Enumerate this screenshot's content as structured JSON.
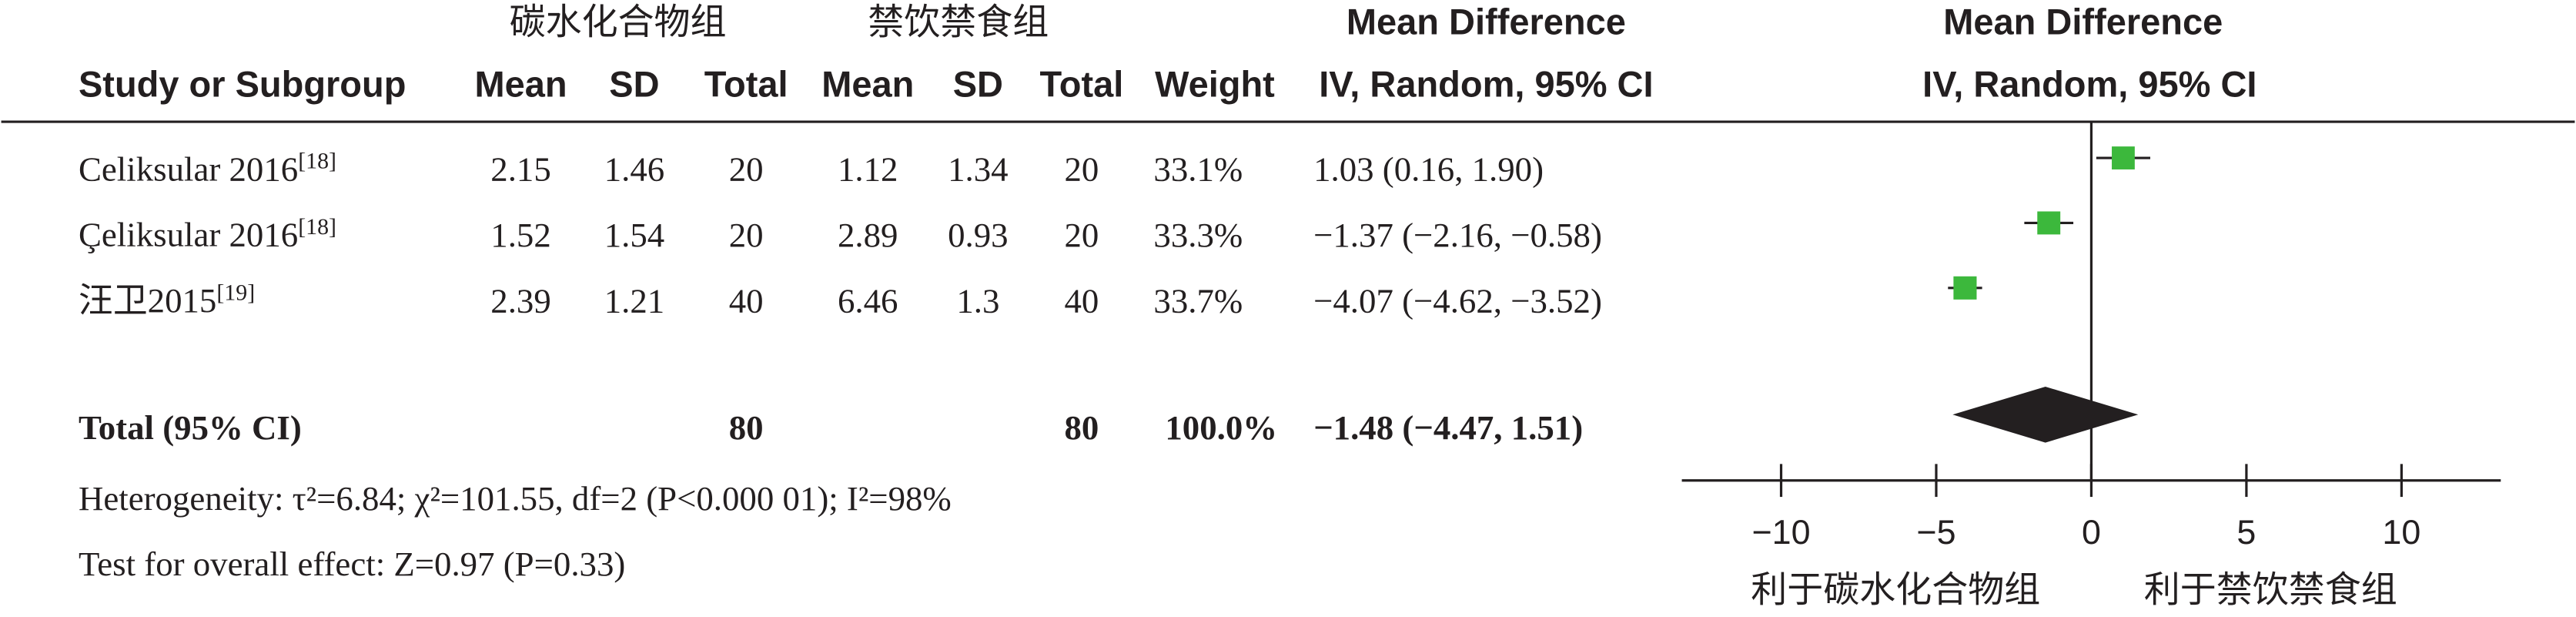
{
  "chart_data": {
    "type": "forest",
    "group_headers": [
      "碳水化合物组",
      "禁饮禁食组"
    ],
    "effect_header": "Mean Difference",
    "method_header": "IV, Random, 95% CI",
    "columns": [
      "Study or Subgroup",
      "Mean",
      "SD",
      "Total",
      "Mean",
      "SD",
      "Total",
      "Weight"
    ],
    "studies": [
      {
        "name": "Celiksular 2016",
        "ref": "[18]",
        "mean1": 2.15,
        "sd1": 1.46,
        "total1": 20,
        "mean2": 1.12,
        "sd2": 1.34,
        "total2": 20,
        "weight": 33.1,
        "weight_label": "33.1%",
        "md": 1.03,
        "lo": 0.16,
        "hi": 1.9,
        "ci_label": "1.03 (0.16, 1.90)"
      },
      {
        "name": "Çeliksular 2016",
        "ref": "[18]",
        "mean1": 1.52,
        "sd1": 1.54,
        "total1": 20,
        "mean2": 2.89,
        "sd2": 0.93,
        "total2": 20,
        "weight": 33.3,
        "weight_label": "33.3%",
        "md": -1.37,
        "lo": -2.16,
        "hi": -0.58,
        "ci_label": "−1.37 (−2.16, −0.58)"
      },
      {
        "name": "汪卫2015",
        "ref": "[19]",
        "mean1": 2.39,
        "sd1": 1.21,
        "total1": 40,
        "mean2": 6.46,
        "sd2": 1.3,
        "total2": 40,
        "weight": 33.7,
        "weight_label": "33.7%",
        "md": -4.07,
        "lo": -4.62,
        "hi": -3.52,
        "ci_label": "−4.07 (−4.62, −3.52)"
      }
    ],
    "total": {
      "name": "Total (95% CI)",
      "total1": 80,
      "total2": 80,
      "weight": 100,
      "weight_label": "100.0%",
      "md": -1.48,
      "lo": -4.47,
      "hi": 1.51,
      "ci_label": "−1.48 (−4.47, 1.51)"
    },
    "heterogeneity": "Heterogeneity: τ²=6.84; χ²=101.55, df=2 (P<0.000 01); I²=98%",
    "overall_effect": "Test for overall effect: Z=0.97 (P=0.33)",
    "xlim": [
      -13.2,
      13.2
    ],
    "xticks": [
      {
        "value": -10,
        "label": "−10"
      },
      {
        "value": -5,
        "label": "−5"
      },
      0,
      5,
      10
    ],
    "favours": [
      "利于碳水化合物组",
      "利于禁饮禁食组"
    ],
    "color": "#3cb83c"
  }
}
